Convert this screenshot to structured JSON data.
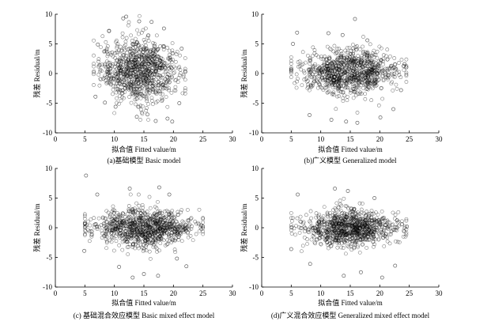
{
  "figure": {
    "panels": [
      {
        "id": "a",
        "caption": "(a)基础模型 Basic model"
      },
      {
        "id": "b",
        "caption": "(b)广义模型 Generalized model"
      },
      {
        "id": "c",
        "caption": "(c) 基础混合效应模型 Basic mixed effect model"
      },
      {
        "id": "d",
        "caption": "(d)广义混合效应模型 Generalized mixed effect model"
      }
    ]
  },
  "colors": {
    "marker": "#000000",
    "axis": "#000000",
    "background": "#ffffff"
  },
  "chart_data": [
    {
      "type": "scatter",
      "panel": "a",
      "title": "",
      "caption": "(a)基础模型 Basic model",
      "xlabel": "拟合值  Fitted value/m",
      "ylabel": "残差  Residual/m",
      "xlim": [
        0,
        30
      ],
      "ylim": [
        -10,
        10
      ],
      "xticks": [
        0,
        5,
        10,
        15,
        20,
        25,
        30
      ],
      "yticks": [
        -10,
        -5,
        0,
        5,
        10
      ],
      "marker": "open-circle",
      "grid": false,
      "cloud": {
        "x_range": [
          6.5,
          22.0
        ],
        "x_center": 14.0,
        "y_center": 0.5,
        "y_spread": 6.5,
        "count": 900
      },
      "points": [
        [
          11.5,
          9.3
        ],
        [
          14.2,
          8.8
        ],
        [
          16.3,
          8.7
        ],
        [
          12.0,
          9.6
        ],
        [
          18.4,
          7.6
        ],
        [
          7.2,
          4.9
        ],
        [
          9.1,
          7.2
        ],
        [
          21.4,
          4.2
        ],
        [
          13.8,
          -7.3
        ],
        [
          19.0,
          -7.6
        ],
        [
          17.0,
          -8.0
        ],
        [
          10.2,
          -5.6
        ],
        [
          15.6,
          -6.9
        ],
        [
          19.8,
          -8.1
        ],
        [
          21.0,
          -5.0
        ],
        [
          6.8,
          -3.9
        ],
        [
          8.4,
          -4.9
        ]
      ]
    },
    {
      "type": "scatter",
      "panel": "b",
      "title": "",
      "caption": "(b)广义模型 Generalized model",
      "xlabel": "拟合值  Fitted value/m",
      "ylabel": "残差  Residual/m",
      "xlim": [
        0,
        30
      ],
      "ylim": [
        -10,
        10
      ],
      "xticks": [
        0,
        5,
        10,
        15,
        20,
        25,
        30
      ],
      "yticks": [
        -10,
        -5,
        0,
        5,
        10
      ],
      "marker": "open-circle",
      "grid": false,
      "cloud": {
        "x_range": [
          5.0,
          24.5
        ],
        "x_center": 14.0,
        "y_center": 0.3,
        "y_spread": 4.5,
        "count": 900
      },
      "points": [
        [
          15.8,
          9.2
        ],
        [
          5.3,
          5.0
        ],
        [
          6.0,
          6.9
        ],
        [
          11.3,
          6.8
        ],
        [
          13.7,
          6.5
        ],
        [
          17.9,
          5.6
        ],
        [
          8.1,
          -7.0
        ],
        [
          14.3,
          -8.1
        ],
        [
          16.2,
          -8.3
        ],
        [
          20.1,
          -7.4
        ],
        [
          22.3,
          -6.0
        ],
        [
          24.2,
          1.6
        ],
        [
          23.6,
          -2.8
        ],
        [
          11.8,
          -7.8
        ]
      ]
    },
    {
      "type": "scatter",
      "panel": "c",
      "title": "",
      "caption": "(c) 基础混合效应模型 Basic mixed effect model",
      "xlabel": "拟合值  Fitted value/m",
      "ylabel": "残差  Residual/m",
      "xlim": [
        0,
        30
      ],
      "ylim": [
        -10,
        10
      ],
      "xticks": [
        0,
        5,
        10,
        15,
        20,
        25,
        30
      ],
      "yticks": [
        -10,
        -5,
        0,
        5,
        10
      ],
      "marker": "open-circle",
      "grid": false,
      "cloud": {
        "x_range": [
          5.0,
          25.0
        ],
        "x_center": 14.5,
        "y_center": 0.0,
        "y_spread": 3.8,
        "count": 900
      },
      "points": [
        [
          5.2,
          8.8
        ],
        [
          7.1,
          5.6
        ],
        [
          12.6,
          6.6
        ],
        [
          17.6,
          6.8
        ],
        [
          19.3,
          5.6
        ],
        [
          10.8,
          -6.6
        ],
        [
          15.0,
          -7.8
        ],
        [
          17.4,
          -8.1
        ],
        [
          22.2,
          -6.5
        ],
        [
          24.7,
          0.4
        ],
        [
          4.9,
          -3.9
        ],
        [
          13.1,
          -8.4
        ],
        [
          20.6,
          -5.2
        ]
      ]
    },
    {
      "type": "scatter",
      "panel": "d",
      "title": "",
      "caption": "(d)广义混合效应模型 Generalized mixed effect model",
      "xlabel": "拟合值  Fitted value/m",
      "ylabel": "残差  Residual/m",
      "xlim": [
        0,
        30
      ],
      "ylim": [
        -10,
        10
      ],
      "xticks": [
        0,
        5,
        10,
        15,
        20,
        25,
        30
      ],
      "yticks": [
        -10,
        -5,
        0,
        5,
        10
      ],
      "marker": "open-circle",
      "grid": false,
      "cloud": {
        "x_range": [
          5.0,
          24.5
        ],
        "x_center": 14.0,
        "y_center": 0.0,
        "y_spread": 3.8,
        "count": 900
      },
      "points": [
        [
          6.1,
          5.6
        ],
        [
          12.4,
          6.6
        ],
        [
          14.6,
          6.2
        ],
        [
          19.1,
          5.0
        ],
        [
          8.2,
          -6.1
        ],
        [
          13.9,
          -8.1
        ],
        [
          16.8,
          -7.5
        ],
        [
          22.6,
          -6.4
        ],
        [
          24.6,
          0.2
        ],
        [
          5.0,
          -3.6
        ],
        [
          20.4,
          -8.4
        ]
      ]
    }
  ]
}
